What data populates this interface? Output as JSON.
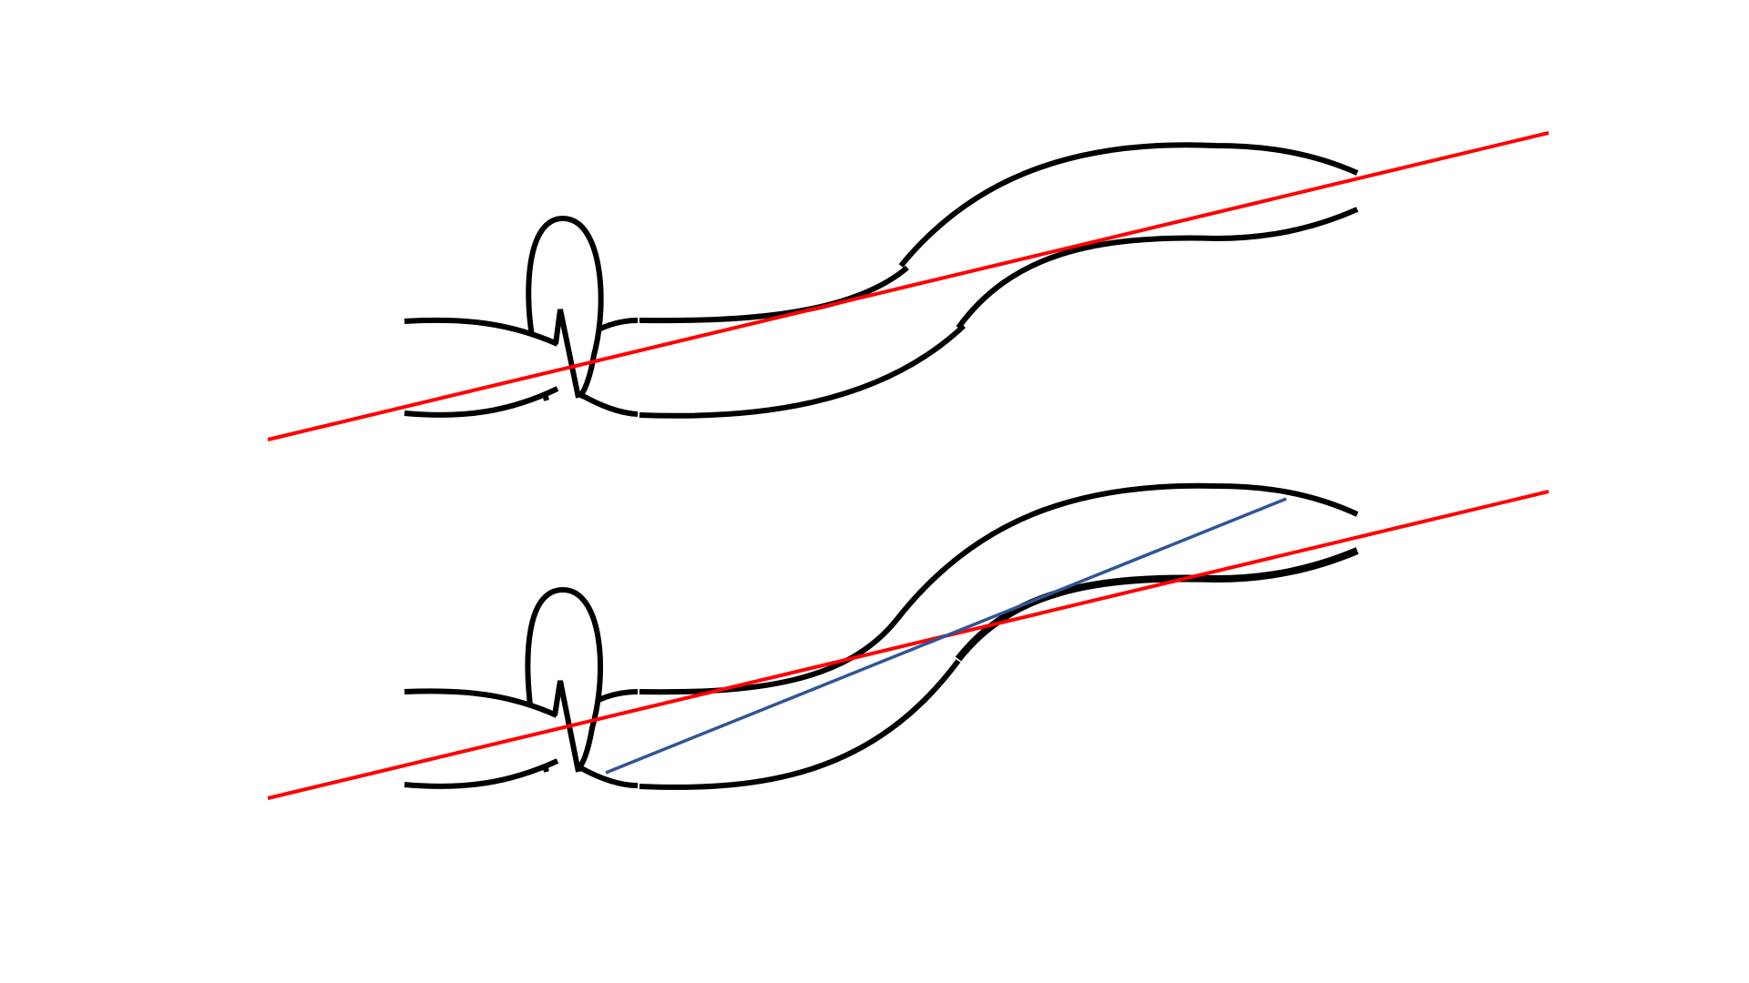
{
  "colors": {
    "background": "#ffffff",
    "vessel_outline": "#000000",
    "reference_line": "#ff0000",
    "axis_line": "#2f5597"
  },
  "panels": [
    {
      "id": "top",
      "has_axis_line": false
    },
    {
      "id": "bottom",
      "has_axis_line": true
    }
  ]
}
